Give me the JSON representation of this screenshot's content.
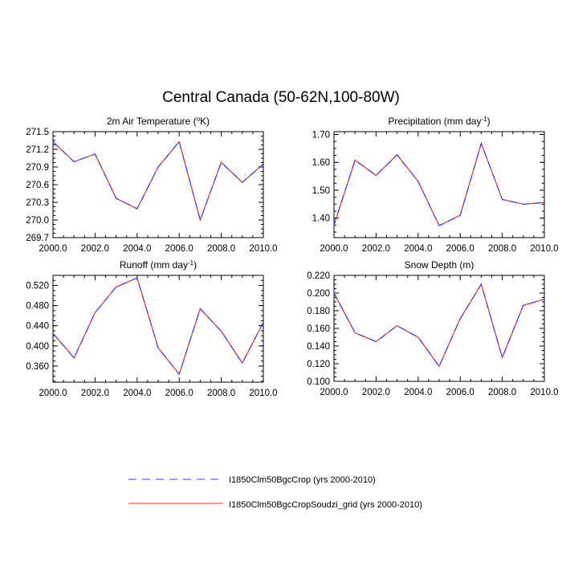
{
  "title": "Central Canada (50-62N,100-80W)",
  "colors": {
    "series_crop": "#3a3aff",
    "series_soudzi": "#ff2a2a",
    "axis": "#000000"
  },
  "legend": {
    "placement": "bottom",
    "entries": [
      {
        "label": "I1850Clm50BgcCrop (yrs 2000-2010)",
        "style": "dashed",
        "color": "#3a3aff"
      },
      {
        "label": "I1850Clm50BgcCropSoudzi_grid (yrs 2000-2010)",
        "style": "solid",
        "color": "#ff2a2a"
      }
    ]
  },
  "chart_data": [
    {
      "type": "line",
      "title": "2m Air Temperature (°K)",
      "title_main": "2m Air Temperature (",
      "title_sup": "o",
      "title_tail": "K)",
      "x": [
        2000,
        2001,
        2002,
        2003,
        2004,
        2005,
        2006,
        2007,
        2008,
        2009,
        2010
      ],
      "xlim": [
        2000,
        2010
      ],
      "xticks": [
        "2000.0",
        "2002.0",
        "2004.0",
        "2006.0",
        "2008.0",
        "2010.0"
      ],
      "ylim": [
        269.7,
        271.5
      ],
      "yticks": [
        "269.7",
        "270.0",
        "270.3",
        "270.6",
        "270.9",
        "271.2",
        "271.5"
      ],
      "ytick_values": [
        269.7,
        270.0,
        270.3,
        270.6,
        270.9,
        271.2,
        271.5
      ],
      "series": [
        {
          "name": "I1850Clm50BgcCrop (yrs 2000-2010)",
          "values": [
            271.33,
            270.99,
            271.12,
            270.37,
            270.19,
            270.9,
            271.33,
            270.0,
            270.98,
            270.64,
            270.95
          ]
        },
        {
          "name": "I1850Clm50BgcCropSoudzi_grid (yrs 2000-2010)",
          "values": [
            271.33,
            270.99,
            271.12,
            270.37,
            270.19,
            270.9,
            271.33,
            270.0,
            270.98,
            270.64,
            270.95
          ]
        }
      ]
    },
    {
      "type": "line",
      "title": "Precipitation (mm day-1)",
      "title_main": "Precipitation (mm day",
      "title_sup": "-1",
      "title_tail": ")",
      "x": [
        2000,
        2001,
        2002,
        2003,
        2004,
        2005,
        2006,
        2007,
        2008,
        2009,
        2010
      ],
      "xlim": [
        2000,
        2010
      ],
      "xticks": [
        "2000.0",
        "2002.0",
        "2004.0",
        "2006.0",
        "2008.0",
        "2010.0"
      ],
      "ylim": [
        1.33,
        1.71
      ],
      "yticks": [
        "1.40",
        "1.50",
        "1.60",
        "1.70"
      ],
      "ytick_values": [
        1.4,
        1.5,
        1.6,
        1.7
      ],
      "series": [
        {
          "name": "I1850Clm50BgcCrop (yrs 2000-2010)",
          "values": [
            1.375,
            1.608,
            1.553,
            1.627,
            1.532,
            1.373,
            1.41,
            1.668,
            1.467,
            1.45,
            1.456
          ]
        },
        {
          "name": "I1850Clm50BgcCropSoudzi_grid (yrs 2000-2010)",
          "values": [
            1.375,
            1.608,
            1.553,
            1.627,
            1.532,
            1.373,
            1.41,
            1.668,
            1.467,
            1.45,
            1.456
          ]
        }
      ]
    },
    {
      "type": "line",
      "title": "Runoff (mm day-1)",
      "title_main": "Runoff (mm day",
      "title_sup": "-1",
      "title_tail": ")",
      "x": [
        2000,
        2001,
        2002,
        2003,
        2004,
        2005,
        2006,
        2007,
        2008,
        2009,
        2010
      ],
      "xlim": [
        2000,
        2010
      ],
      "xticks": [
        "2000.0",
        "2002.0",
        "2004.0",
        "2006.0",
        "2008.0",
        "2010.0"
      ],
      "ylim": [
        0.328,
        0.54
      ],
      "yticks": [
        "0.360",
        "0.400",
        "0.440",
        "0.480",
        "0.520"
      ],
      "ytick_values": [
        0.36,
        0.4,
        0.44,
        0.48,
        0.52
      ],
      "series": [
        {
          "name": "I1850Clm50BgcCrop (yrs 2000-2010)",
          "values": [
            0.425,
            0.376,
            0.466,
            0.517,
            0.535,
            0.396,
            0.344,
            0.474,
            0.429,
            0.366,
            0.447
          ]
        },
        {
          "name": "I1850Clm50BgcCropSoudzi_grid (yrs 2000-2010)",
          "values": [
            0.425,
            0.376,
            0.466,
            0.517,
            0.535,
            0.396,
            0.344,
            0.474,
            0.429,
            0.366,
            0.447
          ]
        }
      ]
    },
    {
      "type": "line",
      "title": "Snow Depth (m)",
      "title_main": "Snow Depth (m)",
      "title_sup": "",
      "title_tail": "",
      "x": [
        2000,
        2001,
        2002,
        2003,
        2004,
        2005,
        2006,
        2007,
        2008,
        2009,
        2010
      ],
      "xlim": [
        2000,
        2010
      ],
      "xticks": [
        "2000.0",
        "2002.0",
        "2004.0",
        "2006.0",
        "2008.0",
        "2010.0"
      ],
      "ylim": [
        0.1,
        0.22
      ],
      "yticks": [
        "0.100",
        "0.120",
        "0.140",
        "0.160",
        "0.180",
        "0.200",
        "0.220"
      ],
      "ytick_values": [
        0.1,
        0.12,
        0.14,
        0.16,
        0.18,
        0.2,
        0.22
      ],
      "series": [
        {
          "name": "I1850Clm50BgcCrop (yrs 2000-2010)",
          "values": [
            0.2,
            0.155,
            0.145,
            0.163,
            0.15,
            0.117,
            0.171,
            0.21,
            0.127,
            0.186,
            0.193
          ]
        },
        {
          "name": "I1850Clm50BgcCropSoudzi_grid (yrs 2000-2010)",
          "values": [
            0.2,
            0.155,
            0.145,
            0.163,
            0.15,
            0.117,
            0.171,
            0.21,
            0.127,
            0.186,
            0.193
          ]
        }
      ]
    }
  ]
}
